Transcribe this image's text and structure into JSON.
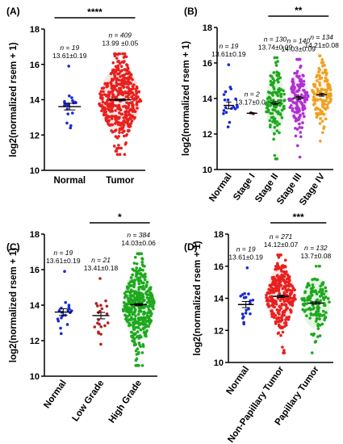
{
  "chart_data": [
    {
      "type": "scatter",
      "panel_label": "(A)",
      "ylabel": "log2(normalized rsem + 1)",
      "ylim": [
        10,
        18
      ],
      "yticks": [
        10,
        12,
        14,
        16,
        18
      ],
      "categories": [
        "Normal",
        "Tumor"
      ],
      "colors": [
        "#1a2bd6",
        "#e8201e"
      ],
      "groups": [
        {
          "name": "Normal",
          "n_label": "n = 19",
          "stat_label": "13.61±0.19",
          "n": 19,
          "mean": 13.61,
          "sem": 0.19,
          "min": 12.4,
          "max": 15.9
        },
        {
          "name": "Tumor",
          "n_label": "n = 409",
          "stat_label": "13.99 ±0.05",
          "n": 409,
          "mean": 13.99,
          "sem": 0.05,
          "min": 10.9,
          "max": 16.6
        }
      ],
      "significance": [
        {
          "from": 0,
          "to": 1,
          "label": "****"
        }
      ]
    },
    {
      "type": "scatter",
      "panel_label": "(B)",
      "ylabel": "log2(normalized rsem + 1)",
      "ylim": [
        10,
        18
      ],
      "yticks": [
        10,
        12,
        14,
        16,
        18
      ],
      "categories": [
        "Normal",
        "Stage I",
        "Stage II",
        "Stage III",
        "Stage IV"
      ],
      "colors": [
        "#1a2bd6",
        "#8b2a2a",
        "#1ea81e",
        "#b030d0",
        "#f0a020"
      ],
      "groups": [
        {
          "name": "Normal",
          "n_label": "n = 19",
          "stat_label": "13.61±0.19",
          "n": 19,
          "mean": 13.61,
          "sem": 0.19,
          "min": 12.4,
          "max": 15.9
        },
        {
          "name": "Stage I",
          "n_label": "n = 2",
          "stat_label": "13.17±0.03",
          "n": 2,
          "mean": 13.17,
          "sem": 0.03,
          "min": 13.14,
          "max": 13.2
        },
        {
          "name": "Stage II",
          "n_label": "n = 130",
          "stat_label": "13.74±0.09",
          "n": 130,
          "mean": 13.74,
          "sem": 0.09,
          "min": 10.6,
          "max": 16.3
        },
        {
          "name": "Stage III",
          "n_label": "n = 140",
          "stat_label": "14.03±0.09",
          "n": 140,
          "mean": 14.03,
          "sem": 0.09,
          "min": 10.7,
          "max": 16.2
        },
        {
          "name": "Stage IV",
          "n_label": "n = 134",
          "stat_label": "14.21±0.08",
          "n": 134,
          "mean": 14.21,
          "sem": 0.08,
          "min": 11.6,
          "max": 16.4
        }
      ],
      "significance": [
        {
          "from": 2,
          "to": 4,
          "label": "**"
        }
      ]
    },
    {
      "type": "scatter",
      "panel_label": "(C)",
      "ylabel": "log2(normalized rsem + 1)",
      "ylim": [
        10,
        18
      ],
      "yticks": [
        10,
        12,
        14,
        16,
        18
      ],
      "categories": [
        "Normal",
        "Low Grade",
        "High Grade"
      ],
      "colors": [
        "#1a2bd6",
        "#b22222",
        "#1ea81e"
      ],
      "groups": [
        {
          "name": "Normal",
          "n_label": "n = 19",
          "stat_label": "13.61±0.19",
          "n": 19,
          "mean": 13.61,
          "sem": 0.19,
          "min": 12.4,
          "max": 15.9
        },
        {
          "name": "Low Grade",
          "n_label": "n = 21",
          "stat_label": "13.41±0.18",
          "n": 21,
          "mean": 13.41,
          "sem": 0.18,
          "min": 11.8,
          "max": 15.5
        },
        {
          "name": "High Grade",
          "n_label": "n = 384",
          "stat_label": "14.03±0.06",
          "n": 384,
          "mean": 14.03,
          "sem": 0.06,
          "min": 10.6,
          "max": 16.9
        }
      ],
      "significance": [
        {
          "from": 1,
          "to": 2,
          "label": "*"
        }
      ]
    },
    {
      "type": "scatter",
      "panel_label": "(D)",
      "ylabel": "log2(normalized rsem + 1)",
      "ylim": [
        10,
        18
      ],
      "yticks": [
        10,
        12,
        14,
        16,
        18
      ],
      "categories": [
        "Normal",
        "Non-Papillary Tumor",
        "Papillary Tumor"
      ],
      "colors": [
        "#1a2bd6",
        "#e8201e",
        "#1ea81e"
      ],
      "groups": [
        {
          "name": "Normal",
          "n_label": "n = 19",
          "stat_label": "13.61±0.19",
          "n": 19,
          "mean": 13.61,
          "sem": 0.19,
          "min": 12.4,
          "max": 15.9
        },
        {
          "name": "Non-Papillary Tumor",
          "n_label": "n = 271",
          "stat_label": "14.12±0.07",
          "n": 271,
          "mean": 14.12,
          "sem": 0.07,
          "min": 10.6,
          "max": 16.7
        },
        {
          "name": "Papillary Tumor",
          "n_label": "n = 132",
          "stat_label": "13.7±0.08",
          "n": 132,
          "mean": 13.7,
          "sem": 0.08,
          "min": 10.6,
          "max": 16.0
        }
      ],
      "significance": [
        {
          "from": 1,
          "to": 2,
          "label": "***"
        }
      ]
    }
  ]
}
